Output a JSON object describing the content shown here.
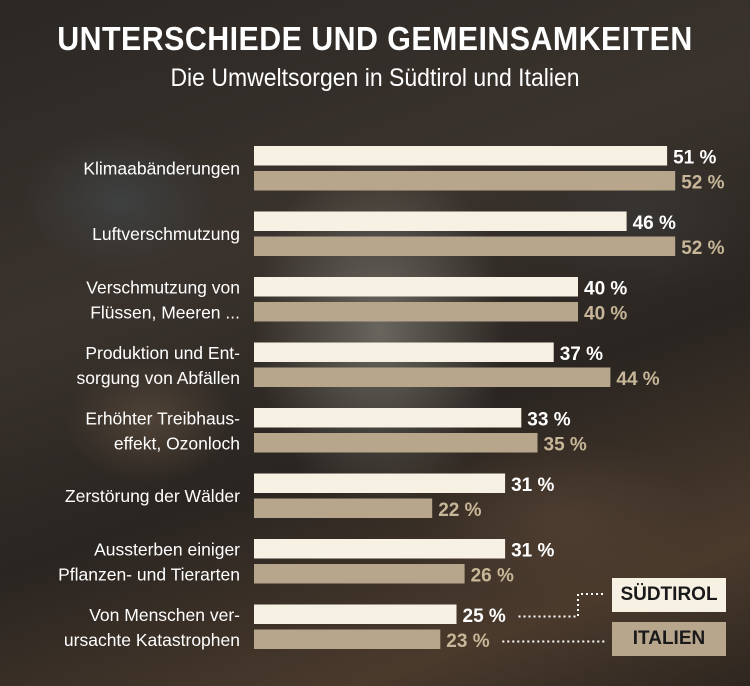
{
  "chart_data": {
    "type": "bar",
    "orientation": "horizontal",
    "title": "UNTERSCHIEDE UND GEMEINSAMKEITEN",
    "subtitle": "Die Umweltsorgen in Südtirol und Italien",
    "categories": [
      [
        "Klimaabänderungen"
      ],
      [
        "Luftverschmutzung"
      ],
      [
        "Verschmutzung von",
        "Flüssen, Meeren ..."
      ],
      [
        "Produktion und Ent-",
        "sorgung von Abfällen"
      ],
      [
        "Erhöhter Treibhaus-",
        "effekt, Ozonloch"
      ],
      [
        "Zerstörung der Wälder"
      ],
      [
        "Aussterben einiger",
        "Pflanzen- und Tierarten"
      ],
      [
        "Von Menschen ver-",
        "ursachte Katastrophen"
      ]
    ],
    "series": [
      {
        "name": "SÜDTIROL",
        "values": [
          51,
          46,
          40,
          37,
          33,
          31,
          31,
          25
        ],
        "color": "#f7f1e4",
        "label_color": "#ffffff"
      },
      {
        "name": "ITALIEN",
        "values": [
          52,
          52,
          40,
          44,
          35,
          22,
          26,
          23
        ],
        "color": "#b7a68c",
        "label_color": "#c7b697"
      }
    ],
    "unit": "%",
    "xlim": [
      0,
      100
    ],
    "legend": "bottom-right"
  }
}
